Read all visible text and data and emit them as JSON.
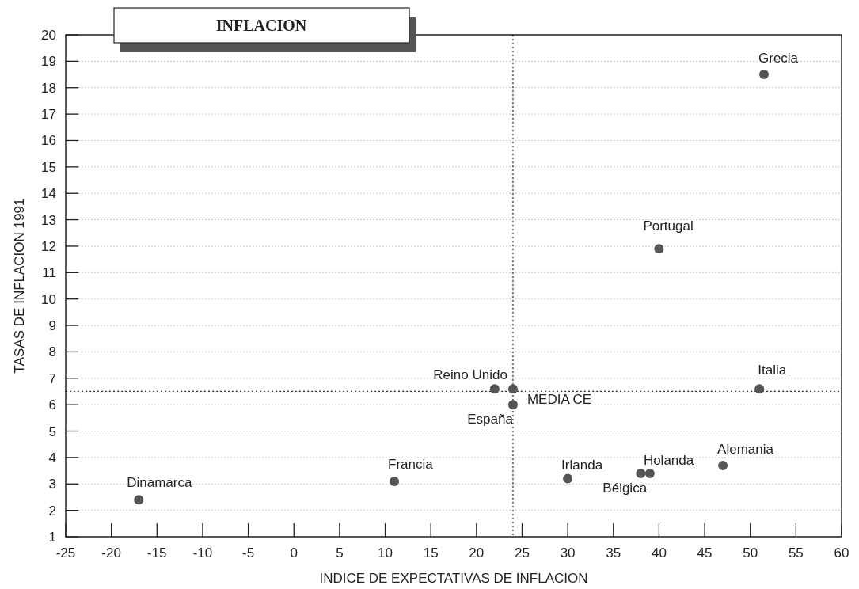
{
  "chart_data": {
    "type": "scatter",
    "title": "INFLACION",
    "xlabel": "INDICE DE EXPECTATIVAS DE INFLACION",
    "ylabel": "TASAS DE INFLACION 1991",
    "xlim": [
      -25,
      60
    ],
    "xticks": [
      -25,
      -20,
      -15,
      -10,
      -5,
      0,
      5,
      10,
      15,
      20,
      25,
      30,
      35,
      40,
      45,
      50,
      55,
      60
    ],
    "ylim": [
      1,
      20
    ],
    "yticks": [
      1,
      2,
      3,
      4,
      5,
      6,
      7,
      8,
      9,
      10,
      11,
      12,
      13,
      14,
      15,
      16,
      17,
      18,
      19,
      20
    ],
    "grid": "y",
    "marker": "circle",
    "ref_lines": [
      {
        "axis": "x",
        "value": 24,
        "line_style": "dotted"
      },
      {
        "axis": "y",
        "value": 6.5,
        "line_style": "dotted"
      }
    ],
    "series": [
      {
        "name": "Dinamarca",
        "color": "#555555",
        "x": [
          -17
        ],
        "values": [
          2.4
        ]
      },
      {
        "name": "Francia",
        "color": "#555555",
        "x": [
          11
        ],
        "values": [
          3.1
        ]
      },
      {
        "name": "Reino Unido",
        "color": "#555555",
        "x": [
          22
        ],
        "values": [
          6.6
        ]
      },
      {
        "name": "MEDIA CE",
        "color": "#555555",
        "x": [
          24
        ],
        "values": [
          6.6
        ]
      },
      {
        "name": "España",
        "color": "#555555",
        "x": [
          24
        ],
        "values": [
          6.0
        ]
      },
      {
        "name": "Irlanda",
        "color": "#555555",
        "x": [
          30
        ],
        "values": [
          3.2
        ]
      },
      {
        "name": "Bélgica",
        "color": "#555555",
        "x": [
          38
        ],
        "values": [
          3.4
        ]
      },
      {
        "name": "Holanda",
        "color": "#555555",
        "x": [
          39
        ],
        "values": [
          3.4
        ]
      },
      {
        "name": "Alemania",
        "color": "#555555",
        "x": [
          47
        ],
        "values": [
          3.7
        ]
      },
      {
        "name": "Portugal",
        "color": "#555555",
        "x": [
          40
        ],
        "values": [
          11.9
        ]
      },
      {
        "name": "Italia",
        "color": "#555555",
        "x": [
          51
        ],
        "values": [
          6.6
        ]
      },
      {
        "name": "Grecia",
        "color": "#555555",
        "x": [
          51.5
        ],
        "values": [
          18.5
        ]
      }
    ]
  }
}
